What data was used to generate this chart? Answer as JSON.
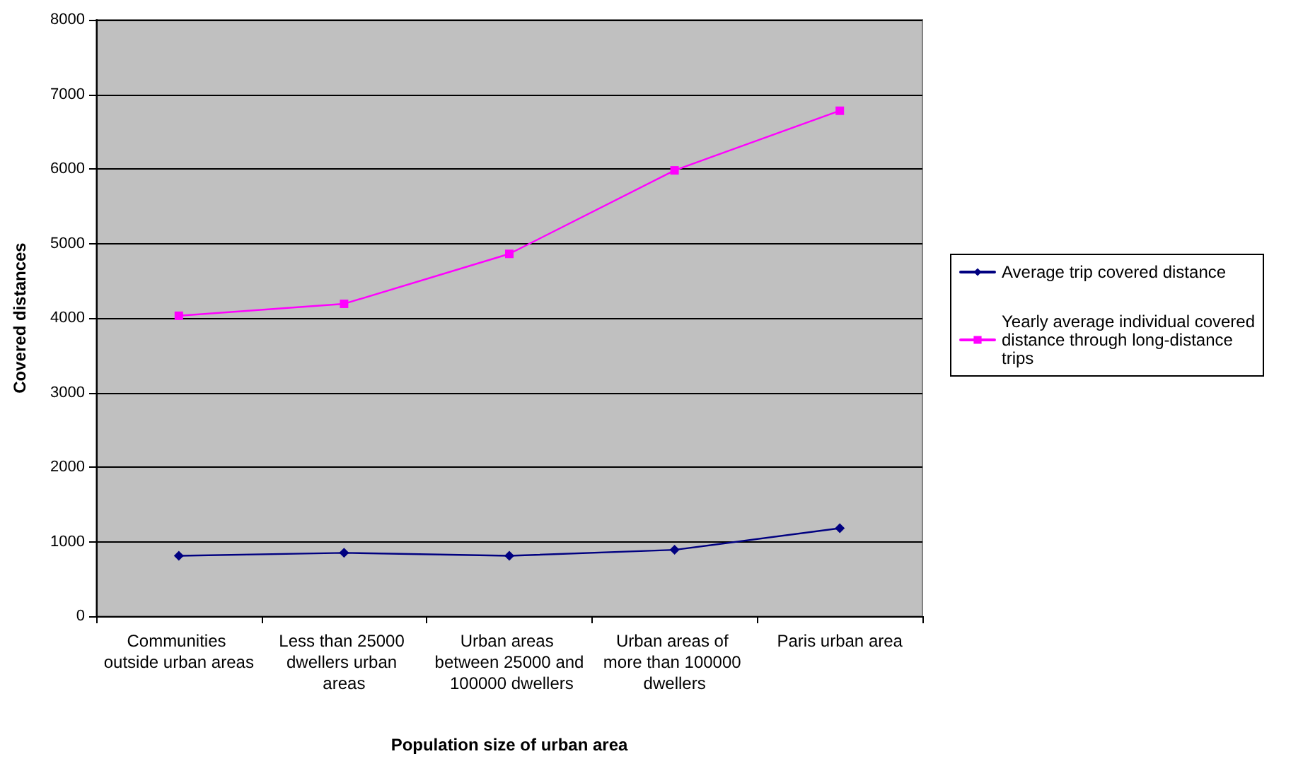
{
  "chart_data": {
    "type": "line",
    "xlabel": "Population size of urban area",
    "ylabel": "Covered distances",
    "categories": [
      "Communities outside urban areas",
      "Less than 25000 dwellers urban areas",
      "Urban areas between 25000 and 100000 dwellers",
      "Urban areas of more than 100000 dwellers",
      "Paris urban area"
    ],
    "series": [
      {
        "name": "Average trip covered distance",
        "color": "#000080",
        "marker": "diamond",
        "values": [
          810,
          850,
          810,
          890,
          1180
        ]
      },
      {
        "name": "Yearly average individual covered distance through long-distance trips",
        "color": "#ff00ff",
        "marker": "square",
        "values": [
          4030,
          4190,
          4860,
          5980,
          6780
        ]
      }
    ],
    "ylim": [
      0,
      8000
    ],
    "yticks": [
      0,
      1000,
      2000,
      3000,
      4000,
      5000,
      6000,
      7000,
      8000
    ],
    "grid": "y",
    "legend": "right"
  }
}
